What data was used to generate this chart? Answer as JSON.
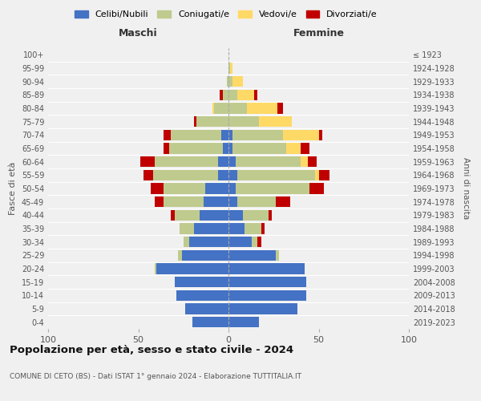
{
  "age_groups": [
    "0-4",
    "5-9",
    "10-14",
    "15-19",
    "20-24",
    "25-29",
    "30-34",
    "35-39",
    "40-44",
    "45-49",
    "50-54",
    "55-59",
    "60-64",
    "65-69",
    "70-74",
    "75-79",
    "80-84",
    "85-89",
    "90-94",
    "95-99",
    "100+"
  ],
  "birth_years": [
    "2019-2023",
    "2014-2018",
    "2009-2013",
    "2004-2008",
    "1999-2003",
    "1994-1998",
    "1989-1993",
    "1984-1988",
    "1979-1983",
    "1974-1978",
    "1969-1973",
    "1964-1968",
    "1959-1963",
    "1954-1958",
    "1949-1953",
    "1944-1948",
    "1939-1943",
    "1934-1938",
    "1929-1933",
    "1924-1928",
    "≤ 1923"
  ],
  "maschi": {
    "celibi": [
      20,
      24,
      29,
      30,
      40,
      26,
      22,
      19,
      16,
      14,
      13,
      6,
      6,
      3,
      4,
      0,
      0,
      0,
      0,
      0,
      0
    ],
    "coniugati": [
      0,
      0,
      0,
      0,
      1,
      2,
      3,
      8,
      14,
      22,
      23,
      36,
      35,
      30,
      28,
      18,
      8,
      3,
      1,
      0,
      0
    ],
    "vedovi": [
      0,
      0,
      0,
      0,
      0,
      0,
      0,
      0,
      0,
      0,
      0,
      0,
      0,
      0,
      0,
      0,
      1,
      0,
      0,
      0,
      0
    ],
    "divorziati": [
      0,
      0,
      0,
      0,
      0,
      0,
      0,
      0,
      2,
      5,
      7,
      5,
      8,
      3,
      4,
      1,
      0,
      2,
      0,
      0,
      0
    ]
  },
  "femmine": {
    "nubili": [
      17,
      38,
      43,
      43,
      42,
      26,
      13,
      9,
      8,
      5,
      4,
      5,
      4,
      2,
      2,
      0,
      0,
      0,
      0,
      0,
      0
    ],
    "coniugate": [
      0,
      0,
      0,
      0,
      0,
      2,
      3,
      9,
      14,
      21,
      41,
      43,
      36,
      30,
      28,
      17,
      10,
      5,
      2,
      1,
      0
    ],
    "vedove": [
      0,
      0,
      0,
      0,
      0,
      0,
      0,
      0,
      0,
      0,
      0,
      2,
      4,
      8,
      20,
      18,
      17,
      9,
      6,
      1,
      0
    ],
    "divorziate": [
      0,
      0,
      0,
      0,
      0,
      0,
      2,
      2,
      2,
      8,
      8,
      6,
      5,
      5,
      2,
      0,
      3,
      2,
      0,
      0,
      0
    ]
  },
  "colors": {
    "celibi_nubili": "#4472C4",
    "coniugati": "#BFCA8E",
    "vedovi": "#FFD966",
    "divorziati": "#C00000"
  },
  "xlim": 100,
  "title": "Popolazione per età, sesso e stato civile - 2024",
  "subtitle": "COMUNE DI CETO (BS) - Dati ISTAT 1° gennaio 2024 - Elaborazione TUTTITALIA.IT",
  "xlabel_left": "Maschi",
  "xlabel_right": "Femmine",
  "ylabel_left": "Fasce di età",
  "ylabel_right": "Anni di nascita",
  "legend_labels": [
    "Celibi/Nubili",
    "Coniugati/e",
    "Vedovi/e",
    "Divorziati/e"
  ],
  "background_color": "#f0f0f0"
}
